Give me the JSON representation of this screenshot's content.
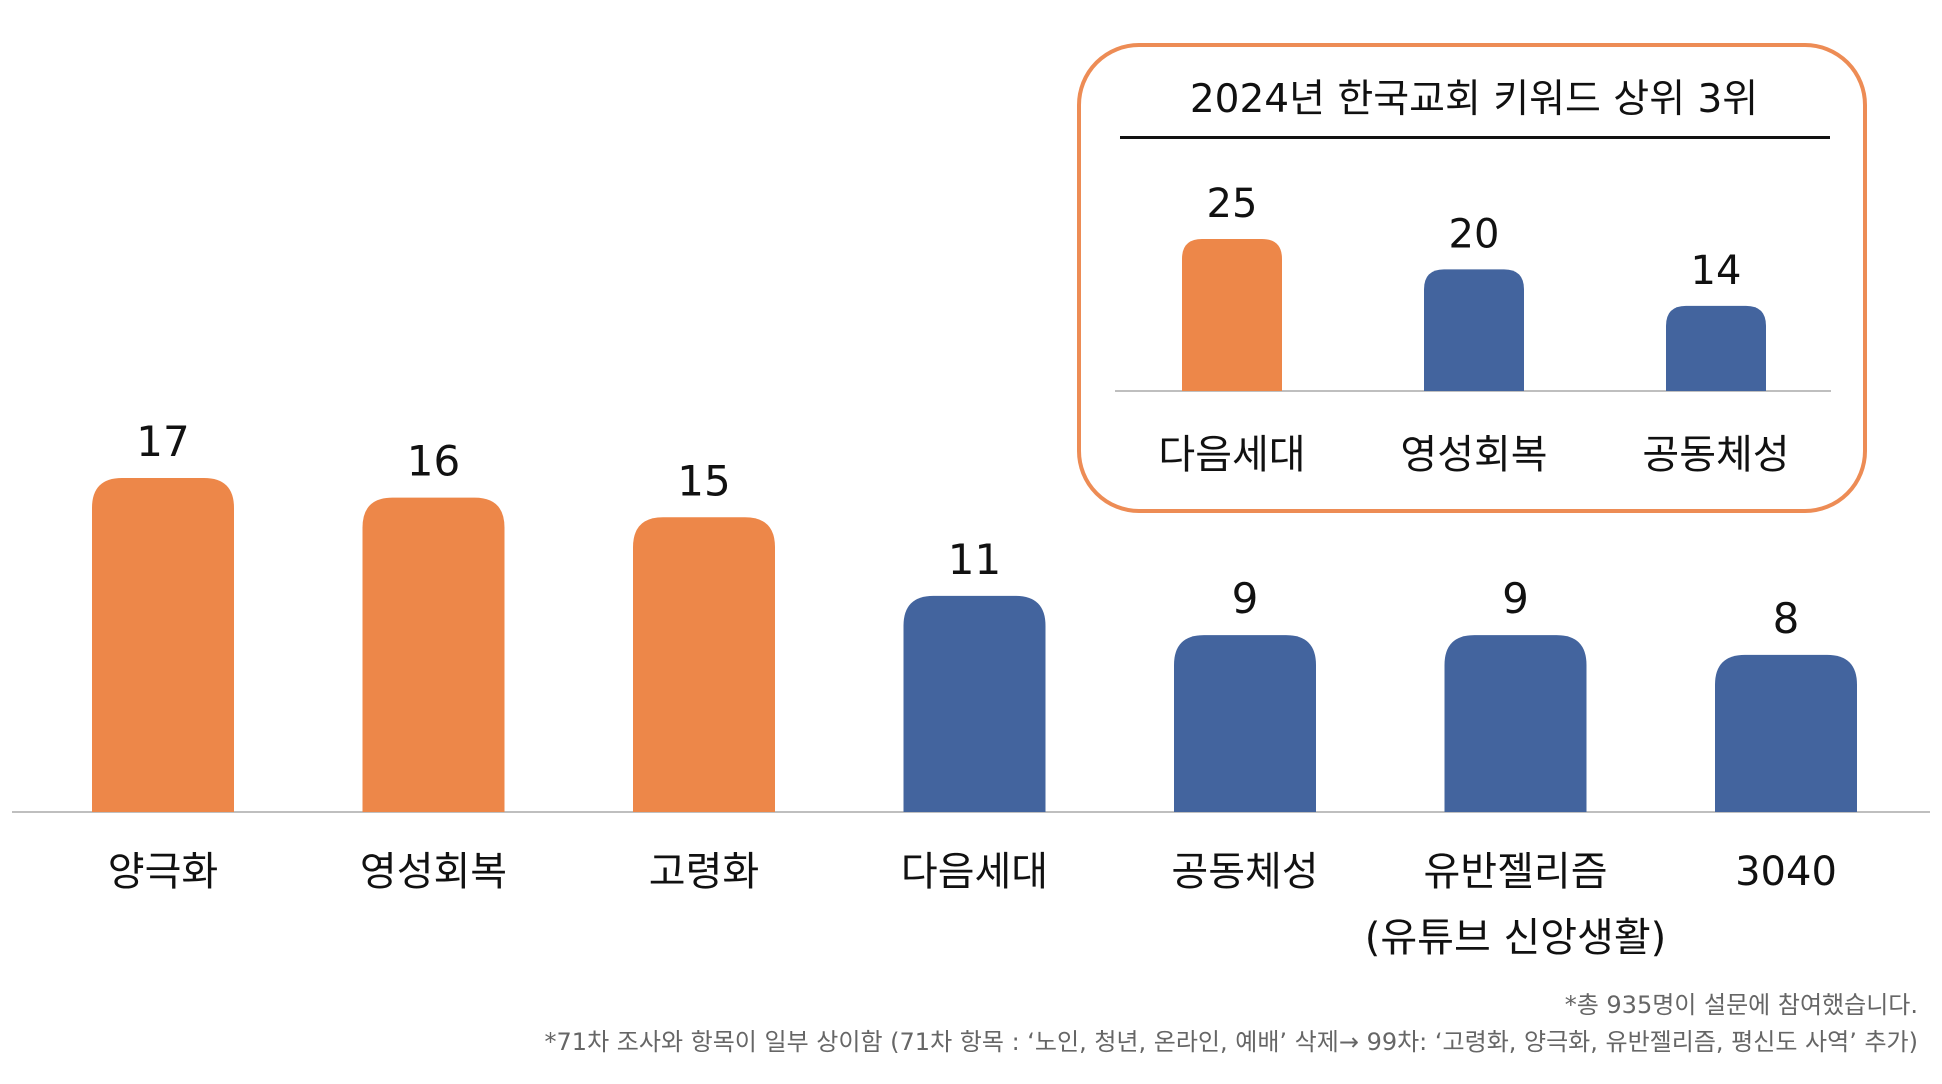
{
  "colors": {
    "highlight": "#ED8749",
    "base": "#43649E",
    "inset_border": "#ED8C55",
    "axis": "#BFBFBF"
  },
  "chart_data": [
    {
      "type": "bar",
      "categories": [
        "양극화",
        "영성회복",
        "고령화",
        "다음세대",
        "공동체성",
        "유반젤리즘\n(유튜브 신앙생활)",
        "3040"
      ],
      "values": [
        17,
        16,
        15,
        11,
        9,
        9,
        8
      ],
      "highlight": [
        true,
        true,
        true,
        false,
        false,
        false,
        false
      ],
      "ylim": [
        0,
        17
      ],
      "grid": false,
      "title": ""
    },
    {
      "type": "bar",
      "title": "2024년 한국교회 키워드 상위 3위",
      "categories": [
        "다음세대",
        "영성회복",
        "공동체성"
      ],
      "values": [
        25,
        20,
        14
      ],
      "highlight": [
        true,
        false,
        false
      ],
      "ylim": [
        0,
        25
      ],
      "grid": false
    }
  ],
  "footnotes": {
    "line1": "*총 935명이 설문에 참여했습니다.",
    "line2": "*71차 조사와 항목이 일부 상이함 (71차 항목 : ‘노인, 청년, 온라인, 예배’ 삭제→ 99차: ‘고령화, 양극화, 유반젤리즘, 평신도 사역’ 추가)"
  }
}
